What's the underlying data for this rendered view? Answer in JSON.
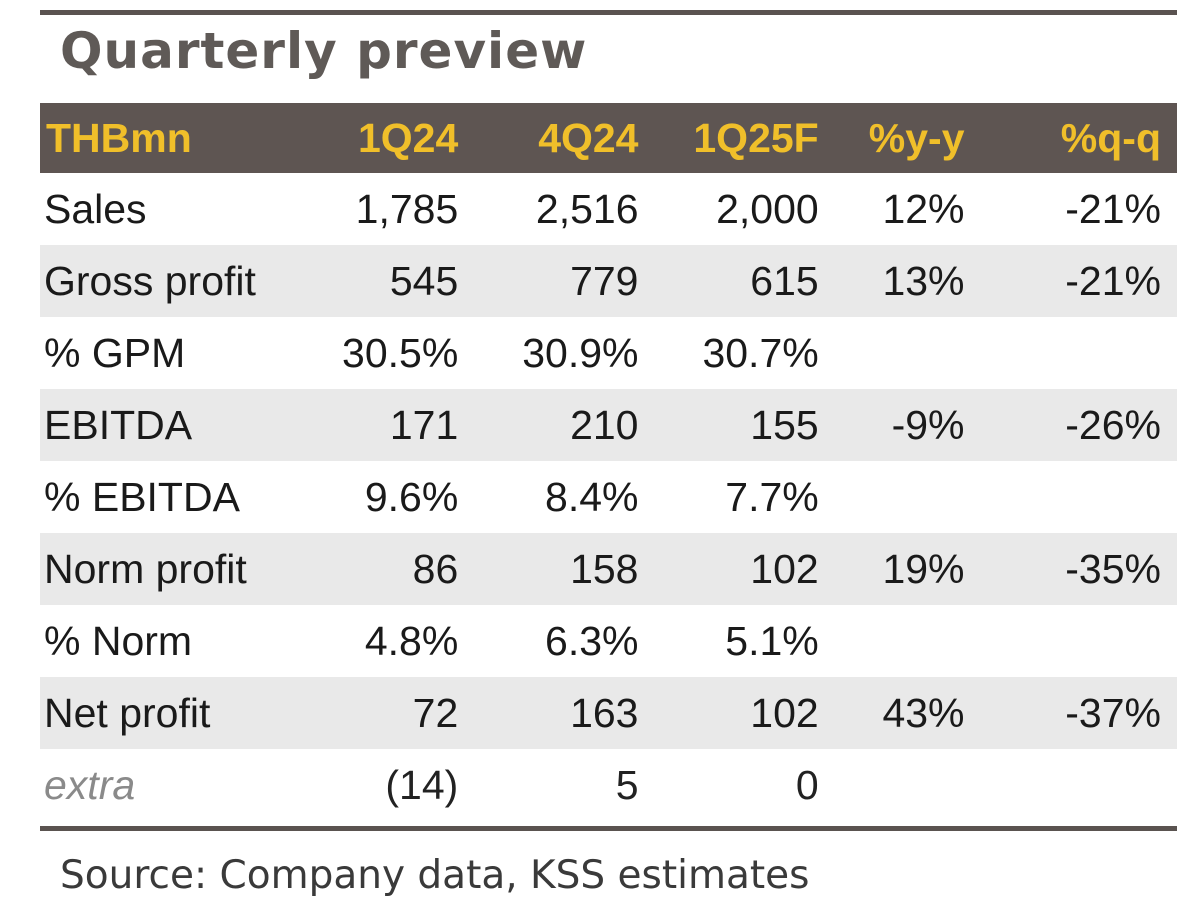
{
  "title": "Quarterly preview",
  "table": {
    "headers": [
      "THBmn",
      "1Q24",
      "4Q24",
      "1Q25F",
      "%y-y",
      "%q-q"
    ],
    "rows": [
      {
        "label": "Sales",
        "cells": [
          "1,785",
          "2,516",
          "2,000",
          "12%",
          "-21%"
        ]
      },
      {
        "label": "Gross profit",
        "cells": [
          "545",
          "779",
          "615",
          "13%",
          "-21%"
        ]
      },
      {
        "label": "% GPM",
        "cells": [
          "30.5%",
          "30.9%",
          "30.7%",
          "",
          ""
        ]
      },
      {
        "label": "EBITDA",
        "cells": [
          "171",
          "210",
          "155",
          "-9%",
          "-26%"
        ]
      },
      {
        "label": "% EBITDA",
        "cells": [
          "9.6%",
          "8.4%",
          "7.7%",
          "",
          ""
        ]
      },
      {
        "label": "Norm profit",
        "cells": [
          "86",
          "158",
          "102",
          "19%",
          "-35%"
        ]
      },
      {
        "label": "% Norm",
        "cells": [
          "4.8%",
          "6.3%",
          "5.1%",
          "",
          ""
        ]
      },
      {
        "label": "Net profit",
        "cells": [
          "72",
          "163",
          "102",
          "43%",
          "-37%"
        ]
      },
      {
        "label": "extra",
        "cells": [
          "(14)",
          "5",
          "0",
          "",
          ""
        ]
      }
    ]
  },
  "source": "Source: Company data, KSS estimates",
  "colors": {
    "header_bg": "#5e5552",
    "header_text": "#f0bf2a",
    "row_shade": "#e9e9e9"
  }
}
